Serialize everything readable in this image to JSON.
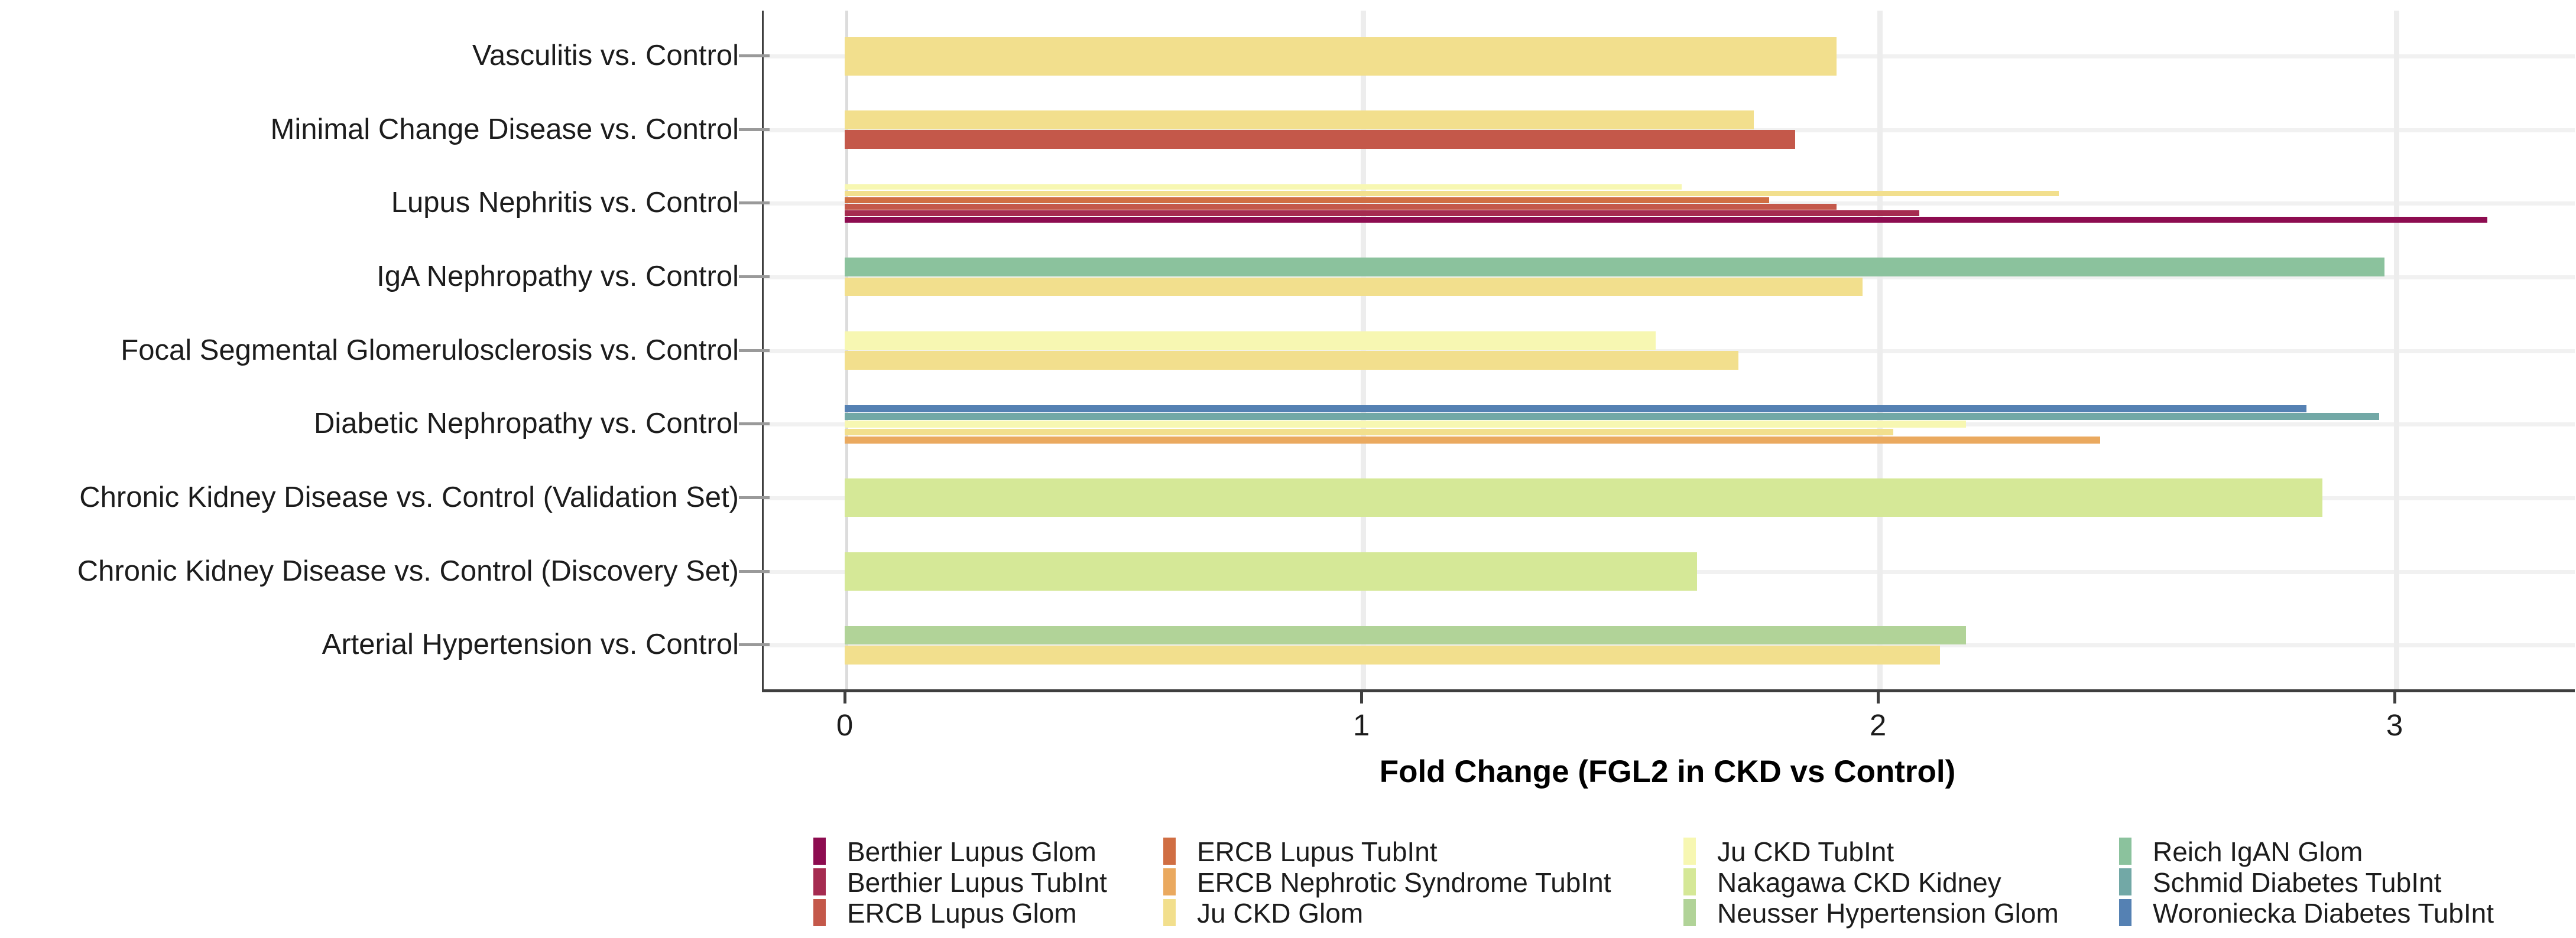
{
  "chart_data": {
    "type": "bar",
    "orientation": "horizontal",
    "title": "",
    "xlabel": "Fold Change (FGL2 in CKD vs Control)",
    "ylabel": "",
    "x_tick_labels": [
      "0",
      "1",
      "2",
      "3"
    ],
    "x_ticks": [
      0,
      1,
      2,
      3
    ],
    "xlim": [
      -0.16,
      3.35
    ],
    "grid": "light vertical lines at integer ticks; light horizontal line at each category center",
    "legend_position": "bottom, 4 columns x 3 rows",
    "categories": [
      "Vasculitis vs. Control",
      "Minimal Change Disease vs. Control",
      "Lupus Nephritis vs. Control",
      "IgA Nephropathy vs. Control",
      "Focal Segmental Glomerulosclerosis vs. Control",
      "Diabetic Nephropathy vs. Control",
      "Chronic Kidney Disease vs. Control (Validation Set)",
      "Chronic Kidney Disease vs. Control (Discovery Set)",
      "Arterial Hypertension vs. Control"
    ],
    "rows": [
      {
        "category": "Vasculitis vs. Control",
        "bars": [
          {
            "dataset": "Ju CKD Glom",
            "value": 1.92
          }
        ]
      },
      {
        "category": "Minimal Change Disease vs. Control",
        "bars": [
          {
            "dataset": "Ju CKD Glom",
            "value": 1.76
          },
          {
            "dataset": "ERCB Lupus Glom",
            "value": 1.84
          }
        ]
      },
      {
        "category": "Lupus Nephritis vs. Control",
        "bars": [
          {
            "dataset": "Ju CKD TubInt",
            "value": 1.62
          },
          {
            "dataset": "Ju CKD Glom",
            "value": 2.35
          },
          {
            "dataset": "ERCB Lupus TubInt",
            "value": 1.79
          },
          {
            "dataset": "ERCB Lupus Glom",
            "value": 1.92
          },
          {
            "dataset": "Berthier Lupus TubInt",
            "value": 2.08
          },
          {
            "dataset": "Berthier Lupus Glom",
            "value": 3.18
          }
        ]
      },
      {
        "category": "IgA Nephropathy vs. Control",
        "bars": [
          {
            "dataset": "Reich IgAN Glom",
            "value": 2.98
          },
          {
            "dataset": "Ju CKD Glom",
            "value": 1.97
          }
        ]
      },
      {
        "category": "Focal Segmental Glomerulosclerosis vs. Control",
        "bars": [
          {
            "dataset": "Ju CKD TubInt",
            "value": 1.57
          },
          {
            "dataset": "Ju CKD Glom",
            "value": 1.73
          }
        ]
      },
      {
        "category": "Diabetic Nephropathy vs. Control",
        "bars": [
          {
            "dataset": "Woroniecka Diabetes TubInt",
            "value": 2.83
          },
          {
            "dataset": "Schmid Diabetes TubInt",
            "value": 2.97
          },
          {
            "dataset": "Ju CKD TubInt",
            "value": 2.17
          },
          {
            "dataset": "Ju CKD Glom",
            "value": 2.03
          },
          {
            "dataset": "ERCB Nephrotic Syndrome TubInt",
            "value": 2.43
          }
        ]
      },
      {
        "category": "Chronic Kidney Disease vs. Control (Validation Set)",
        "bars": [
          {
            "dataset": "Nakagawa CKD Kidney",
            "value": 2.86
          }
        ]
      },
      {
        "category": "Chronic Kidney Disease vs. Control (Discovery Set)",
        "bars": [
          {
            "dataset": "Nakagawa CKD Kidney",
            "value": 1.65
          }
        ]
      },
      {
        "category": "Arterial Hypertension vs. Control",
        "bars": [
          {
            "dataset": "Neusser Hypertension Glom",
            "value": 2.17
          },
          {
            "dataset": "Ju CKD Glom",
            "value": 2.12
          }
        ]
      }
    ],
    "legend_entries": [
      "Berthier Lupus Glom",
      "Berthier Lupus TubInt",
      "ERCB Lupus Glom",
      "ERCB Lupus TubInt",
      "ERCB Nephrotic Syndrome TubInt",
      "Ju CKD Glom",
      "Ju CKD TubInt",
      "Nakagawa CKD Kidney",
      "Neusser Hypertension Glom",
      "Reich IgAN Glom",
      "Schmid Diabetes TubInt",
      "Woroniecka Diabetes TubInt"
    ],
    "palette": {
      "Berthier Lupus Glom": "#8d0c50",
      "Berthier Lupus TubInt": "#a52b50",
      "ERCB Lupus Glom": "#c4584a",
      "ERCB Lupus TubInt": "#d06e43",
      "ERCB Nephrotic Syndrome TubInt": "#eaa95f",
      "Ju CKD Glom": "#f2df8d",
      "Ju CKD TubInt": "#f7f7b2",
      "Nakagawa CKD Kidney": "#d5e897",
      "Neusser Hypertension Glom": "#b1d398",
      "Reich IgAN Glom": "#8bc29d",
      "Schmid Diabetes TubInt": "#72a8a6",
      "Woroniecka Diabetes TubInt": "#5581b3"
    },
    "colors": {
      "axis_line": "#3f3f3f",
      "grid_major": "#ededed",
      "grid_zero": "#dcdcdc",
      "y_tick": "#9a9a9a",
      "text": "#1c1c1c"
    }
  }
}
